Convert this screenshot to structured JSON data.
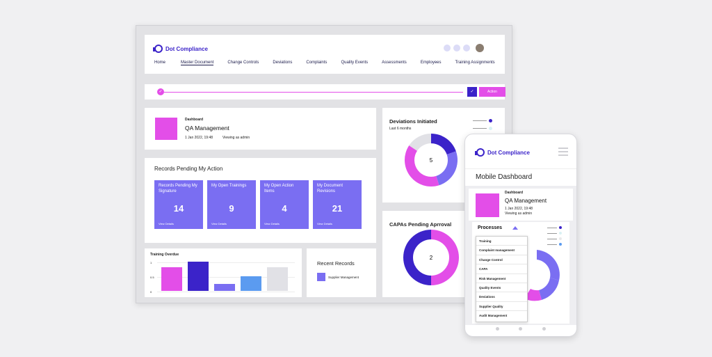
{
  "brand": {
    "name": "Dot Compliance",
    "primary": "#3b23c9",
    "accent": "#e34ee8",
    "tile": "#7a6ef2"
  },
  "nav": {
    "items": [
      "Home",
      "Master Document",
      "Change Controls",
      "Deviations",
      "Complaints",
      "Quality Events",
      "Assessments",
      "Employees",
      "Training Assignments"
    ],
    "active": "Master Document"
  },
  "progress": {
    "action_label": "Action"
  },
  "dashboard": {
    "label": "Dashboard",
    "title": "QA Management",
    "date": "1 Jan 2022, 19:48",
    "viewing": "Viewing as admin"
  },
  "records_pending": {
    "title": "Records Pending My Action",
    "tiles": [
      {
        "label": "Records Pending My Signature",
        "value": "14",
        "link": "View Details"
      },
      {
        "label": "My Open Trainings",
        "value": "9",
        "link": "View Details"
      },
      {
        "label": "My Open Action Items",
        "value": "4",
        "link": "View Details"
      },
      {
        "label": "My Document Revisions",
        "value": "21",
        "link": "View Details"
      }
    ]
  },
  "training_overdue": {
    "title": "Training Overdue",
    "ticks": [
      "1",
      "0.5",
      "0"
    ]
  },
  "recent_records": {
    "title": "Recent Records",
    "item": "Supplier Management"
  },
  "deviations": {
    "title": "Deviations Initiated",
    "subtitle": "Last 6 months",
    "center": "5"
  },
  "capas": {
    "title": "CAPAs Pending Aprroval",
    "center": "2"
  },
  "mobile": {
    "title": "Mobile Dashboard",
    "dashboard_label": "Dashboard",
    "dashboard_title": "QA Management",
    "date": "1 Jan 2022, 19:48",
    "viewing": "Viewing as admin",
    "processes_label": "Processes",
    "processes": [
      "Training",
      "Complaint management",
      "Change Control",
      "CAPA",
      "Risk Management",
      "Quality Events",
      "Deviations",
      "Supplier Quality",
      "Audit Management"
    ]
  },
  "chart_data": [
    {
      "type": "bar",
      "title": "Training Overdue",
      "categories": [
        "",
        "",
        "",
        "",
        ""
      ],
      "values": [
        0.8,
        1.0,
        0.25,
        0.5,
        0.8
      ],
      "colors": [
        "#e34ee8",
        "#3b23c9",
        "#7a6ef2",
        "#5b9bf0",
        "#e1e1e6"
      ],
      "ylim": [
        0,
        1
      ],
      "yticks": [
        "1",
        "0.5",
        "0"
      ]
    },
    {
      "type": "pie",
      "title": "Deviations Initiated",
      "subtitle": "Last 6 months",
      "center_value": 5,
      "values": [
        1,
        1.3,
        2,
        0.8
      ],
      "colors": [
        "#3b23c9",
        "#7a6ef2",
        "#e34ee8",
        "#e1e1e6"
      ]
    },
    {
      "type": "pie",
      "title": "CAPAs Pending Aprroval",
      "center_value": 2,
      "values": [
        1,
        1
      ],
      "colors": [
        "#e34ee8",
        "#3b23c9"
      ]
    }
  ]
}
